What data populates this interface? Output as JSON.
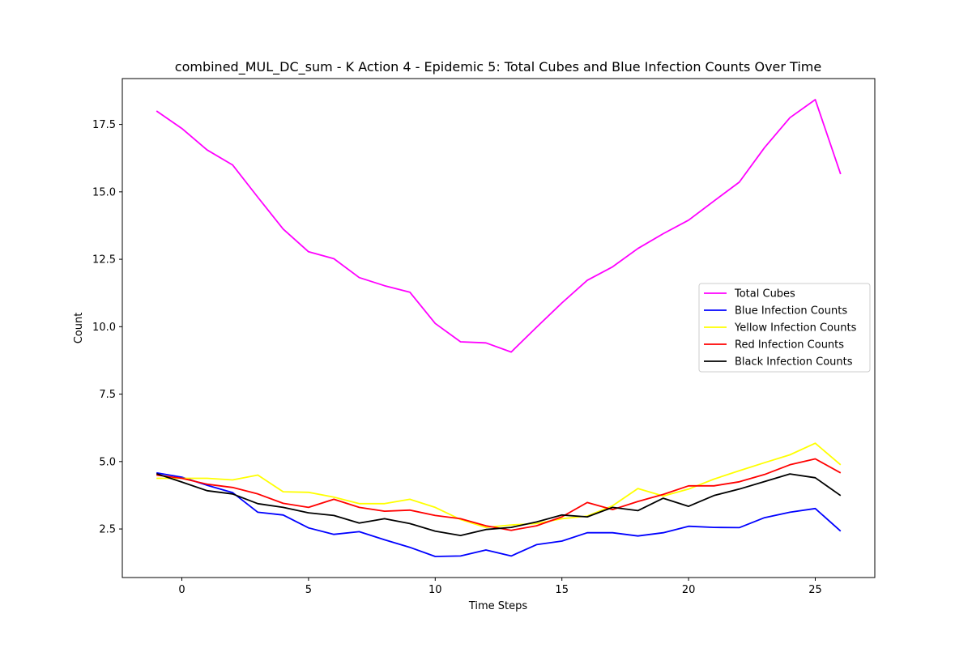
{
  "chart_data": {
    "type": "line",
    "title": "combined_MUL_DC_sum - K Action 4 - Epidemic 5: Total Cubes and Blue Infection Counts Over Time",
    "xlabel": "Time Steps",
    "ylabel": "Count",
    "xlim": [
      -2.35,
      27.35
    ],
    "ylim": [
      0.7,
      19.2
    ],
    "xticks": [
      0,
      5,
      10,
      15,
      20,
      25
    ],
    "yticks": [
      2.5,
      5.0,
      7.5,
      10.0,
      12.5,
      15.0,
      17.5
    ],
    "ytick_labels": [
      "2.5",
      "5.0",
      "7.5",
      "10.0",
      "12.5",
      "15.0",
      "17.5"
    ],
    "grid": false,
    "legend_position": "center-right",
    "x": [
      -1,
      0,
      1,
      2,
      3,
      4,
      5,
      6,
      7,
      8,
      9,
      10,
      11,
      12,
      13,
      14,
      15,
      16,
      17,
      18,
      19,
      20,
      21,
      22,
      23,
      24,
      25,
      26
    ],
    "series": [
      {
        "name": "Total Cubes",
        "color": "#ff00ff",
        "values": [
          18.0,
          17.35,
          16.55,
          16.0,
          14.8,
          13.62,
          12.78,
          12.52,
          11.82,
          11.52,
          11.28,
          10.12,
          9.44,
          9.4,
          9.06,
          9.98,
          10.88,
          11.72,
          12.22,
          12.9,
          13.45,
          13.95,
          14.66,
          15.36,
          16.64,
          17.75,
          18.42,
          15.66
        ]
      },
      {
        "name": "Blue Infection Counts",
        "color": "#0000ff",
        "values": [
          4.58,
          4.42,
          4.12,
          3.85,
          3.12,
          3.02,
          2.54,
          2.3,
          2.4,
          2.1,
          1.82,
          1.48,
          1.5,
          1.72,
          1.5,
          1.92,
          2.05,
          2.36,
          2.36,
          2.24,
          2.36,
          2.6,
          2.56,
          2.55,
          2.92,
          3.12,
          3.26,
          2.42
        ]
      },
      {
        "name": "Yellow Infection Counts",
        "color": "#ffff00",
        "values": [
          4.38,
          4.38,
          4.38,
          4.32,
          4.5,
          3.88,
          3.86,
          3.68,
          3.44,
          3.44,
          3.6,
          3.3,
          2.85,
          2.56,
          2.65,
          2.7,
          2.88,
          2.98,
          3.36,
          4.0,
          3.72,
          3.98,
          4.35,
          4.66,
          4.96,
          5.25,
          5.68,
          4.88
        ]
      },
      {
        "name": "Red Infection Counts",
        "color": "#ff0000",
        "values": [
          4.5,
          4.38,
          4.16,
          4.04,
          3.8,
          3.45,
          3.3,
          3.6,
          3.3,
          3.16,
          3.2,
          3.0,
          2.88,
          2.62,
          2.45,
          2.62,
          2.95,
          3.48,
          3.22,
          3.52,
          3.78,
          4.1,
          4.1,
          4.25,
          4.52,
          4.88,
          5.1,
          4.58
        ]
      },
      {
        "name": "Black Infection Counts",
        "color": "#000000",
        "values": [
          4.55,
          4.24,
          3.92,
          3.8,
          3.44,
          3.3,
          3.1,
          3.0,
          2.72,
          2.88,
          2.7,
          2.42,
          2.26,
          2.48,
          2.56,
          2.76,
          3.02,
          2.95,
          3.3,
          3.18,
          3.64,
          3.34,
          3.74,
          3.98,
          4.26,
          4.54,
          4.4,
          3.74
        ]
      }
    ]
  }
}
